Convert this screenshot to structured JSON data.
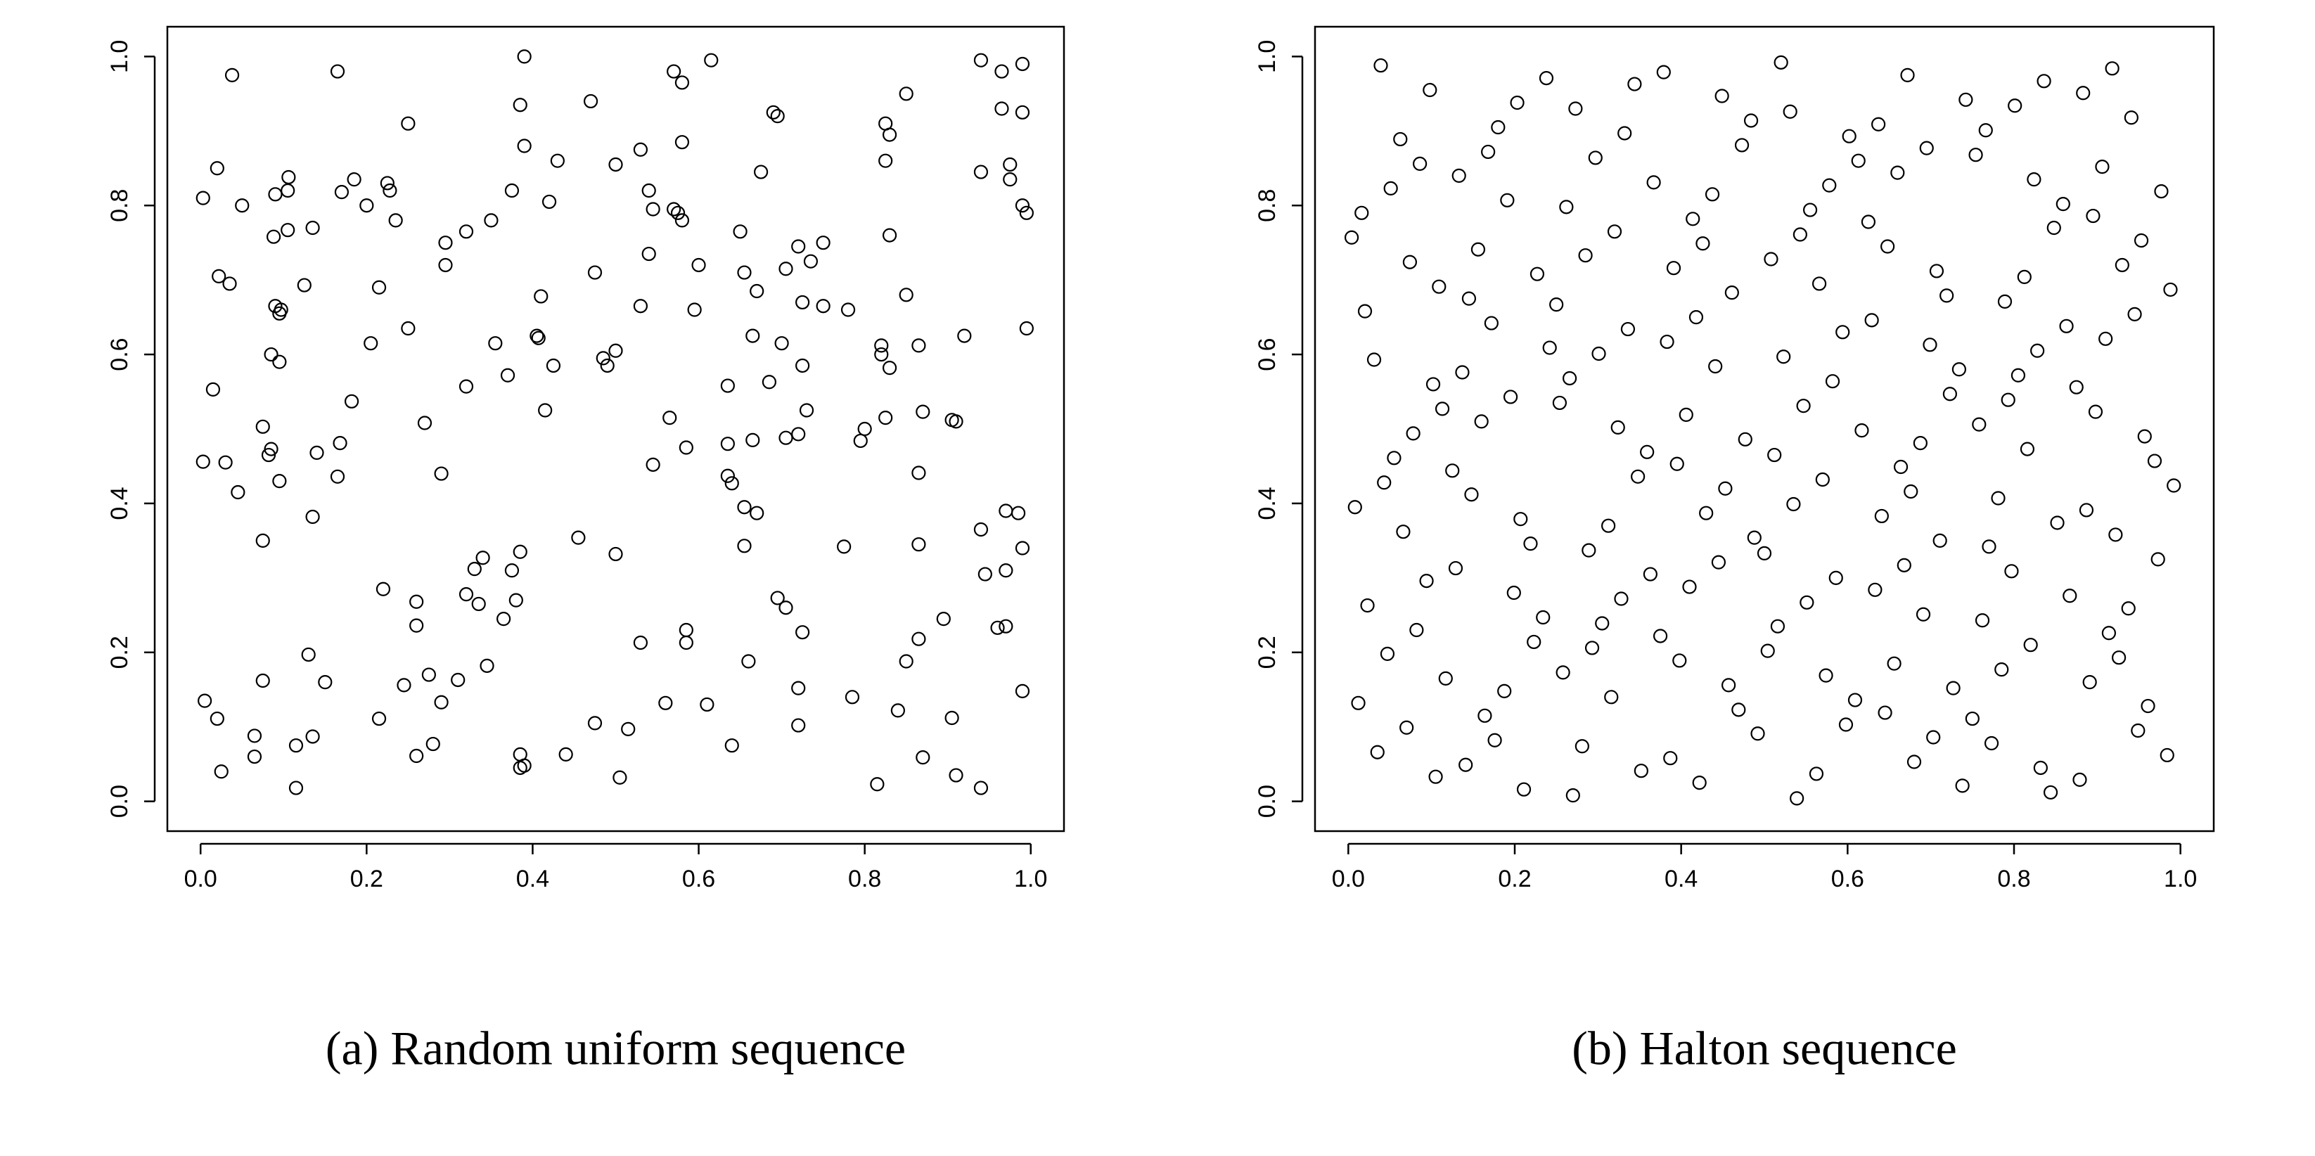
{
  "chart_data": [
    {
      "type": "scatter",
      "caption": "(a) Random uniform sequence",
      "xlim": [
        -0.04,
        1.04
      ],
      "ylim": [
        -0.04,
        1.04
      ],
      "xticks": [
        {
          "value": 0,
          "label": "0.0"
        },
        0.2,
        0.4,
        0.6,
        0.8,
        {
          "value": 1,
          "label": "1.0"
        }
      ],
      "yticks": [
        {
          "value": 0,
          "label": "0.0"
        },
        0.2,
        0.4,
        0.6,
        0.8,
        {
          "value": 1,
          "label": "1.0"
        }
      ],
      "x": [
        0.003,
        0.02,
        0.038,
        0.165,
        0.39,
        0.57,
        0.615,
        0.58,
        0.25,
        0.385,
        0.47,
        0.85,
        0.94,
        0.965,
        0.99,
        0.965,
        0.99,
        0.825,
        0.83,
        0.39,
        0.58,
        0.695,
        0.69,
        0.43,
        0.5,
        0.53,
        0.825,
        0.975,
        0.94,
        0.975,
        0.675,
        0.106,
        0.09,
        0.105,
        0.17,
        0.185,
        0.225,
        0.228,
        0.2,
        0.05,
        0.235,
        0.375,
        0.42,
        0.54,
        0.545,
        0.57,
        0.575,
        0.58,
        0.35,
        0.32,
        0.295,
        0.105,
        0.088,
        0.135,
        0.65,
        0.72,
        0.75,
        0.735,
        0.705,
        0.83,
        0.99,
        0.995,
        0.295,
        0.475,
        0.54,
        0.6,
        0.655,
        0.022,
        0.035,
        0.125,
        0.215,
        0.67,
        0.41,
        0.53,
        0.725,
        0.75,
        0.78,
        0.85,
        0.09,
        0.095,
        0.097,
        0.25,
        0.595,
        0.995,
        0.92,
        0.665,
        0.7,
        0.405,
        0.407,
        0.355,
        0.205,
        0.085,
        0.095,
        0.82,
        0.82,
        0.865,
        0.5,
        0.485,
        0.49,
        0.425,
        0.37,
        0.725,
        0.83,
        0.015,
        0.182,
        0.32,
        0.635,
        0.685,
        0.73,
        0.415,
        0.565,
        0.87,
        0.905,
        0.91,
        0.27,
        0.075,
        0.8,
        0.825,
        0.72,
        0.705,
        0.665,
        0.635,
        0.585,
        0.795,
        0.168,
        0.085,
        0.082,
        0.14,
        0.003,
        0.03,
        0.545,
        0.865,
        0.29,
        0.165,
        0.095,
        0.635,
        0.64,
        0.045,
        0.655,
        0.67,
        0.135,
        0.985,
        0.97,
        0.94,
        0.075,
        0.455,
        0.655,
        0.775,
        0.865,
        0.99,
        0.385,
        0.5,
        0.34,
        0.33,
        0.375,
        0.945,
        0.97,
        0.22,
        0.32,
        0.26,
        0.335,
        0.38,
        0.695,
        0.705,
        0.365,
        0.26,
        0.725,
        0.585,
        0.53,
        0.585,
        0.865,
        0.96,
        0.97,
        0.895,
        0.13,
        0.345,
        0.66,
        0.85,
        0.075,
        0.15,
        0.245,
        0.275,
        0.31,
        0.72,
        0.99,
        0.005,
        0.29,
        0.56,
        0.61,
        0.785,
        0.02,
        0.215,
        0.475,
        0.515,
        0.72,
        0.84,
        0.905,
        0.065,
        0.135,
        0.115,
        0.28,
        0.64,
        0.065,
        0.26,
        0.385,
        0.44,
        0.87,
        0.025,
        0.385,
        0.39,
        0.505,
        0.91,
        0.815,
        0.94,
        0.115
      ],
      "values": [
        0.81,
        0.85,
        0.975,
        0.98,
        1.0,
        0.98,
        0.995,
        0.965,
        0.91,
        0.935,
        0.94,
        0.95,
        0.995,
        0.98,
        0.99,
        0.93,
        0.925,
        0.91,
        0.895,
        0.88,
        0.885,
        0.92,
        0.925,
        0.86,
        0.855,
        0.875,
        0.86,
        0.855,
        0.845,
        0.835,
        0.845,
        0.838,
        0.815,
        0.82,
        0.818,
        0.835,
        0.83,
        0.82,
        0.8,
        0.8,
        0.78,
        0.82,
        0.805,
        0.82,
        0.795,
        0.795,
        0.79,
        0.78,
        0.78,
        0.765,
        0.75,
        0.767,
        0.758,
        0.77,
        0.765,
        0.745,
        0.75,
        0.725,
        0.715,
        0.76,
        0.8,
        0.79,
        0.72,
        0.71,
        0.735,
        0.72,
        0.71,
        0.705,
        0.695,
        0.693,
        0.69,
        0.685,
        0.678,
        0.665,
        0.67,
        0.665,
        0.66,
        0.68,
        0.665,
        0.655,
        0.66,
        0.635,
        0.66,
        0.635,
        0.625,
        0.625,
        0.615,
        0.625,
        0.622,
        0.615,
        0.615,
        0.6,
        0.59,
        0.612,
        0.6,
        0.612,
        0.605,
        0.595,
        0.585,
        0.585,
        0.572,
        0.585,
        0.582,
        0.553,
        0.537,
        0.557,
        0.558,
        0.563,
        0.525,
        0.525,
        0.515,
        0.523,
        0.512,
        0.51,
        0.508,
        0.503,
        0.5,
        0.515,
        0.493,
        0.488,
        0.485,
        0.48,
        0.475,
        0.484,
        0.481,
        0.473,
        0.465,
        0.468,
        0.456,
        0.455,
        0.452,
        0.441,
        0.44,
        0.436,
        0.43,
        0.437,
        0.427,
        0.415,
        0.395,
        0.387,
        0.382,
        0.387,
        0.39,
        0.365,
        0.35,
        0.354,
        0.343,
        0.342,
        0.345,
        0.34,
        0.335,
        0.332,
        0.327,
        0.312,
        0.31,
        0.305,
        0.31,
        0.285,
        0.278,
        0.268,
        0.265,
        0.27,
        0.273,
        0.26,
        0.245,
        0.236,
        0.227,
        0.23,
        0.213,
        0.213,
        0.218,
        0.233,
        0.235,
        0.245,
        0.197,
        0.182,
        0.188,
        0.188,
        0.162,
        0.16,
        0.156,
        0.17,
        0.163,
        0.152,
        0.148,
        0.135,
        0.133,
        0.132,
        0.13,
        0.14,
        0.111,
        0.111,
        0.105,
        0.097,
        0.102,
        0.122,
        0.112,
        0.088,
        0.087,
        0.075,
        0.077,
        0.075,
        0.06,
        0.061,
        0.063,
        0.063,
        0.059,
        0.04,
        0.045,
        0.048,
        0.032,
        0.035,
        0.023,
        0.018,
        0.018
      ]
    },
    {
      "type": "scatter",
      "caption": "(b) Halton sequence",
      "xlim": [
        -0.04,
        1.04
      ],
      "ylim": [
        -0.04,
        1.04
      ],
      "xticks": [
        {
          "value": 0,
          "label": "0.0"
        },
        0.2,
        0.4,
        0.6,
        0.8,
        {
          "value": 1,
          "label": "1.0"
        }
      ],
      "yticks": [
        {
          "value": 0,
          "label": "0.0"
        },
        0.2,
        0.4,
        0.6,
        0.8,
        {
          "value": 1,
          "label": "1.0"
        }
      ],
      "x": [
        0.5,
        0.25,
        0.75,
        0.125,
        0.625,
        0.375,
        0.875,
        0.0625,
        0.5625,
        0.3125,
        0.8125,
        0.1875,
        0.6875,
        0.4375,
        0.9375,
        0.031,
        0.531,
        0.281,
        0.781,
        0.156,
        0.656,
        0.406,
        0.906,
        0.094,
        0.594,
        0.344,
        0.844,
        0.219,
        0.719,
        0.469,
        0.969,
        0.016,
        0.516,
        0.266,
        0.766,
        0.141,
        0.641,
        0.391,
        0.891,
        0.078,
        0.578,
        0.328,
        0.828,
        0.203,
        0.703,
        0.453,
        0.953,
        0.047,
        0.547,
        0.297,
        0.797,
        0.172,
        0.672,
        0.422,
        0.922,
        0.109,
        0.609,
        0.359,
        0.859,
        0.234,
        0.734,
        0.484,
        0.984,
        0.008,
        0.508,
        0.258,
        0.758,
        0.133,
        0.633,
        0.383,
        0.883,
        0.07,
        0.57,
        0.32,
        0.82,
        0.195,
        0.695,
        0.445,
        0.945,
        0.039,
        0.539,
        0.289,
        0.789,
        0.164,
        0.664,
        0.414,
        0.914,
        0.102,
        0.602,
        0.352,
        0.852,
        0.227,
        0.727,
        0.477,
        0.977,
        0.023,
        0.523,
        0.273,
        0.773,
        0.148,
        0.648,
        0.398,
        0.898,
        0.086,
        0.586,
        0.336,
        0.836,
        0.211,
        0.711,
        0.461,
        0.961,
        0.055,
        0.555,
        0.305,
        0.805,
        0.18,
        0.68,
        0.43,
        0.93,
        0.117,
        0.617,
        0.367,
        0.867,
        0.242,
        0.742,
        0.492,
        0.992,
        0.004,
        0.504,
        0.254,
        0.754,
        0.129,
        0.629,
        0.379,
        0.879,
        0.066,
        0.566,
        0.316,
        0.816,
        0.191,
        0.691,
        0.441,
        0.941,
        0.035,
        0.535,
        0.285,
        0.785,
        0.16,
        0.66,
        0.41,
        0.91,
        0.098,
        0.598,
        0.348,
        0.848,
        0.223,
        0.723,
        0.473,
        0.973,
        0.02,
        0.52,
        0.27,
        0.77,
        0.145,
        0.645,
        0.395,
        0.895,
        0.082,
        0.582,
        0.332,
        0.832,
        0.207,
        0.707,
        0.457,
        0.957,
        0.051,
        0.551,
        0.301,
        0.801,
        0.176,
        0.676,
        0.426,
        0.926,
        0.113,
        0.613,
        0.363,
        0.863,
        0.238,
        0.738,
        0.488,
        0.988,
        0.012,
        0.512,
        0.262,
        0.762,
        0.137,
        0.637,
        0.387,
        0.887,
        0.074,
        0.574,
        0.324,
        0.824,
        0.199,
        0.699,
        0.449,
        0.949,
        0.043,
        0.543,
        0.293,
        0.793,
        0.168,
        0.668,
        0.418,
        0.918,
        0.105
      ],
      "values": [
        0.333,
        0.667,
        0.111,
        0.444,
        0.778,
        0.222,
        0.556,
        0.889,
        0.037,
        0.37,
        0.704,
        0.148,
        0.481,
        0.815,
        0.259,
        0.593,
        0.926,
        0.074,
        0.407,
        0.741,
        0.185,
        0.519,
        0.852,
        0.296,
        0.63,
        0.963,
        0.012,
        0.346,
        0.679,
        0.123,
        0.457,
        0.79,
        0.235,
        0.568,
        0.901,
        0.049,
        0.383,
        0.716,
        0.16,
        0.494,
        0.827,
        0.272,
        0.605,
        0.938,
        0.086,
        0.42,
        0.753,
        0.198,
        0.531,
        0.864,
        0.309,
        0.642,
        0.975,
        0.025,
        0.358,
        0.691,
        0.136,
        0.469,
        0.802,
        0.247,
        0.58,
        0.914,
        0.062,
        0.395,
        0.728,
        0.173,
        0.506,
        0.84,
        0.284,
        0.617,
        0.951,
        0.099,
        0.432,
        0.765,
        0.21,
        0.543,
        0.877,
        0.321,
        0.654,
        0.988,
        0.004,
        0.337,
        0.671,
        0.115,
        0.449,
        0.782,
        0.226,
        0.56,
        0.893,
        0.041,
        0.374,
        0.708,
        0.152,
        0.486,
        0.819,
        0.263,
        0.597,
        0.93,
        0.078,
        0.412,
        0.745,
        0.189,
        0.523,
        0.856,
        0.3,
        0.634,
        0.967,
        0.016,
        0.35,
        0.683,
        0.128,
        0.461,
        0.794,
        0.239,
        0.572,
        0.905,
        0.053,
        0.387,
        0.72,
        0.165,
        0.498,
        0.831,
        0.276,
        0.609,
        0.942,
        0.091,
        0.424,
        0.757,
        0.202,
        0.535,
        0.868,
        0.313,
        0.646,
        0.979,
        0.029,
        0.362,
        0.695,
        0.14,
        0.473,
        0.807,
        0.251,
        0.584,
        0.918,
        0.066,
        0.399,
        0.733,
        0.177,
        0.51,
        0.844,
        0.288,
        0.621,
        0.955,
        0.103,
        0.436,
        0.77,
        0.214,
        0.547,
        0.881,
        0.325,
        0.658,
        0.992,
        0.008,
        0.342,
        0.675,
        0.119,
        0.453,
        0.786,
        0.23,
        0.564,
        0.897,
        0.045,
        0.379,
        0.712,
        0.156,
        0.49,
        0.823,
        0.267,
        0.601,
        0.934,
        0.082,
        0.416,
        0.749,
        0.193,
        0.527,
        0.86,
        0.305,
        0.638,
        0.971,
        0.021,
        0.354,
        0.687,
        0.132,
        0.465,
        0.798,
        0.243,
        0.576,
        0.909,
        0.058,
        0.391,
        0.724,
        0.169,
        0.502,
        0.835,
        0.28,
        0.613,
        0.947,
        0.095,
        0.428,
        0.761,
        0.206,
        0.539,
        0.872,
        0.317,
        0.65,
        0.984,
        0.033
      ]
    }
  ]
}
